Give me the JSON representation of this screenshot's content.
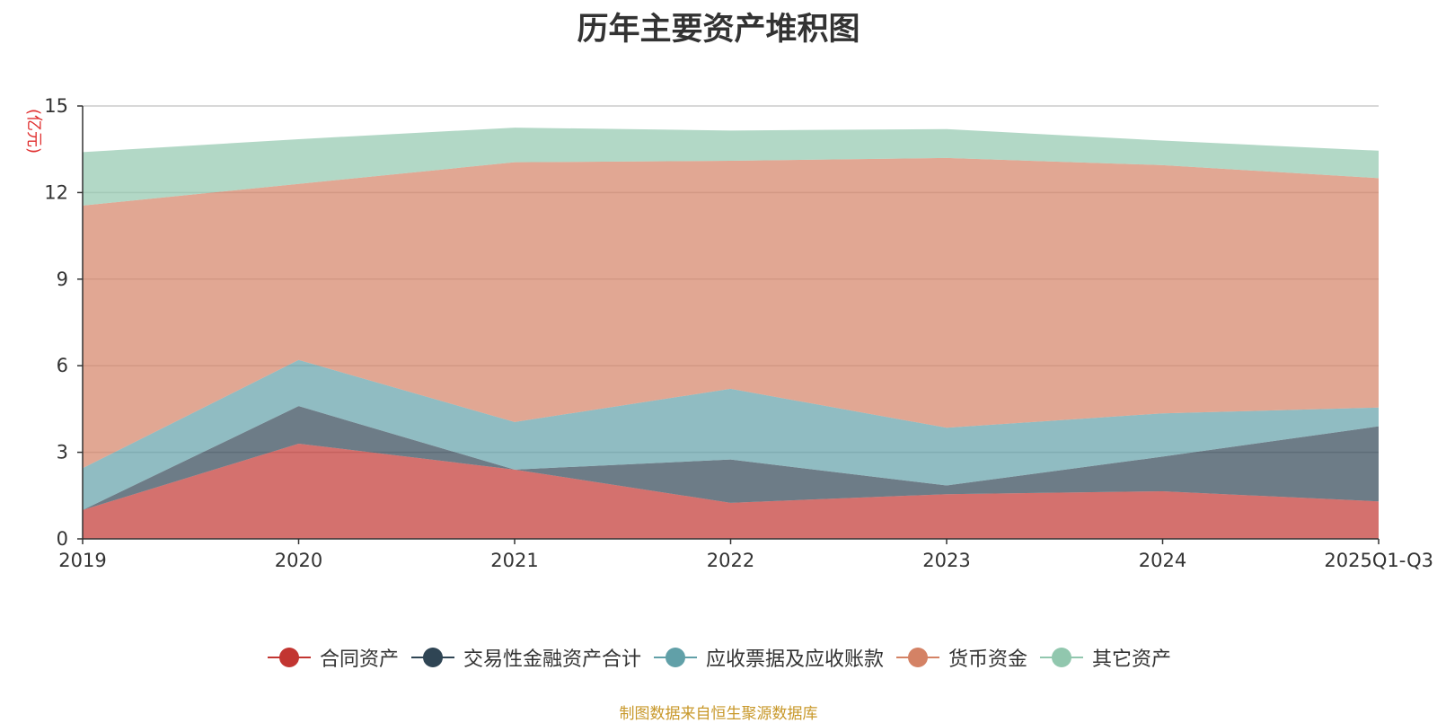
{
  "chart_data": {
    "type": "area",
    "stacked": true,
    "title": "历年主要资产堆积图",
    "ylabel": "(亿元)",
    "xlabel": "",
    "categories": [
      "2019",
      "2020",
      "2021",
      "2022",
      "2023",
      "2024",
      "2025Q1-Q3"
    ],
    "ylim": [
      0,
      15
    ],
    "yticks": [
      0,
      3,
      6,
      9,
      12,
      15
    ],
    "grid": true,
    "legend_position": "bottom",
    "series": [
      {
        "name": "合同资产",
        "color": "#c23531",
        "values": [
          1.0,
          3.3,
          2.4,
          1.25,
          1.55,
          1.65,
          1.3
        ]
      },
      {
        "name": "交易性金融资产合计",
        "color": "#2f4554",
        "values": [
          0.0,
          1.3,
          0.0,
          1.5,
          0.3,
          1.2,
          2.6
        ]
      },
      {
        "name": "应收票据及应收账款",
        "color": "#61a0a8",
        "values": [
          1.45,
          1.6,
          1.65,
          2.45,
          2.0,
          1.5,
          0.65
        ]
      },
      {
        "name": "货币资金",
        "color": "#d48265",
        "values": [
          9.1,
          6.1,
          9.0,
          7.9,
          9.35,
          8.6,
          7.95
        ]
      },
      {
        "name": "其它资产",
        "color": "#91c7ae",
        "values": [
          1.85,
          1.55,
          1.2,
          1.05,
          1.0,
          0.85,
          0.95
        ]
      }
    ]
  },
  "source_note": "制图数据来自恒生聚源数据库"
}
